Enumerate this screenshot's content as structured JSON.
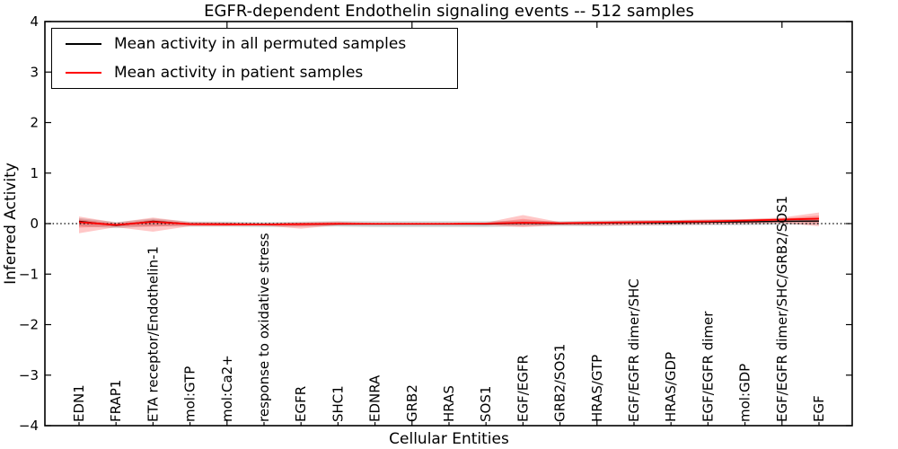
{
  "figure": {
    "title": "EGFR-dependent Endothelin signaling events -- 512 samples",
    "xlabel": "Cellular Entities",
    "ylabel": "Inferred Activity"
  },
  "legend": {
    "entries": [
      {
        "label": "Mean activity in all permuted samples",
        "color": "#000000"
      },
      {
        "label": "Mean activity in patient samples",
        "color": "#ff0000"
      }
    ]
  },
  "chart_data": {
    "type": "line",
    "title": "EGFR-dependent Endothelin signaling events -- 512 samples",
    "xlabel": "Cellular Entities",
    "ylabel": "Inferred Activity",
    "ylim": [
      -4,
      4
    ],
    "yticks": [
      -4,
      -3,
      -2,
      -1,
      0,
      1,
      2,
      3,
      4
    ],
    "grid": false,
    "zero_line": true,
    "legend_position": "upper left",
    "categories": [
      "EDN1",
      "FRAP1",
      "ETA receptor/Endothelin-1",
      "mol:GTP",
      "mol:Ca2+",
      "response to oxidative stress",
      "EGFR",
      "SHC1",
      "EDNRA",
      "GRB2",
      "HRAS",
      "SOS1",
      "EGF/EGFR",
      "GRB2/SOS1",
      "HRAS/GTP",
      "EGF/EGFR dimer/SHC",
      "HRAS/GDP",
      "EGF/EGFR dimer",
      "mol:GDP",
      "EGF/EGFR dimer/SHC/GRB2/SOS1",
      "EGF"
    ],
    "series": [
      {
        "name": "Mean activity in all permuted samples",
        "color": "#000000",
        "line_width": 1.4,
        "band_color": "rgba(0,0,0,0.15)",
        "values": [
          0.045,
          -0.036,
          0.045,
          -0.01,
          -0.01,
          -0.018,
          -0.01,
          -0.01,
          -0.01,
          -0.01,
          -0.01,
          -0.01,
          0.01,
          0.0,
          0.01,
          0.02,
          0.02,
          0.03,
          0.035,
          0.045,
          0.05
        ],
        "band_upper": [
          0.11,
          0.03,
          0.1,
          0.04,
          0.04,
          0.03,
          0.04,
          0.05,
          0.05,
          0.05,
          0.05,
          0.05,
          0.06,
          0.05,
          0.06,
          0.07,
          0.07,
          0.08,
          0.09,
          0.1,
          0.12
        ],
        "band_lower": [
          -0.05,
          -0.09,
          -0.05,
          -0.06,
          -0.06,
          -0.07,
          -0.06,
          -0.06,
          -0.07,
          -0.07,
          -0.07,
          -0.07,
          -0.05,
          -0.05,
          -0.05,
          -0.04,
          -0.04,
          -0.03,
          -0.03,
          -0.02,
          -0.02
        ]
      },
      {
        "name": "Mean activity in patient samples",
        "color": "#ff0000",
        "line_width": 1.8,
        "band_color": "rgba(255,0,0,0.22)",
        "values": [
          0.03,
          -0.027,
          0.036,
          -0.01,
          -0.014,
          -0.018,
          -0.01,
          -0.005,
          -0.004,
          -0.004,
          -0.004,
          0.0,
          0.018,
          0.009,
          0.018,
          0.027,
          0.036,
          0.045,
          0.06,
          0.08,
          0.098
        ],
        "band_upper": [
          0.14,
          0.02,
          0.12,
          0.03,
          0.02,
          0.01,
          0.02,
          0.04,
          0.01,
          0.01,
          0.01,
          0.02,
          0.17,
          0.03,
          0.05,
          0.06,
          0.07,
          0.08,
          0.09,
          0.12,
          0.22
        ],
        "band_lower": [
          -0.19,
          -0.07,
          -0.16,
          -0.05,
          -0.05,
          -0.04,
          -0.1,
          -0.03,
          -0.02,
          -0.02,
          -0.02,
          -0.03,
          -0.07,
          -0.03,
          -0.04,
          -0.03,
          -0.02,
          -0.01,
          0.0,
          0.01,
          -0.05
        ]
      }
    ]
  }
}
